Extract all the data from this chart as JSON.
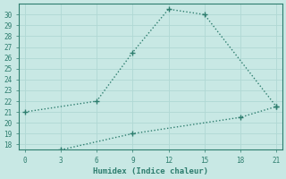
{
  "line1_x": [
    0,
    6,
    9,
    12,
    15,
    21
  ],
  "line1_y": [
    21,
    22,
    26.5,
    30.5,
    30,
    21.5
  ],
  "line2_x": [
    3,
    9,
    18,
    21
  ],
  "line2_y": [
    17.5,
    19,
    20.5,
    21.5
  ],
  "line_color": "#2d7d6e",
  "bg_color": "#c8e8e4",
  "grid_color": "#b0d8d4",
  "xlabel": "Humidex (Indice chaleur)",
  "xlim": [
    -0.5,
    21.5
  ],
  "ylim": [
    17.5,
    31
  ],
  "xticks": [
    0,
    3,
    6,
    9,
    12,
    15,
    18,
    21
  ],
  "yticks": [
    18,
    19,
    20,
    21,
    22,
    23,
    24,
    25,
    26,
    27,
    28,
    29,
    30
  ],
  "markersize": 4,
  "linewidth": 1.0
}
